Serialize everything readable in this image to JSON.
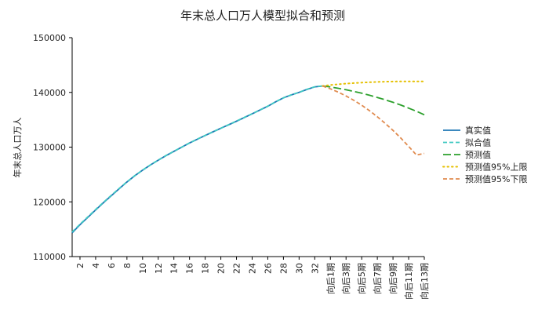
{
  "chart_data": {
    "type": "line",
    "title": "年末总人口万人模型拟合和预测",
    "ylabel": "年末总人口万人",
    "xlabel": "",
    "ylim": [
      110000,
      150000
    ],
    "yticks": [
      110000,
      120000,
      130000,
      140000,
      150000
    ],
    "ytick_labels": [
      "110000",
      "120000",
      "130000",
      "140000",
      "150000"
    ],
    "x_tick_labels": [
      "2",
      "4",
      "6",
      "8",
      "10",
      "12",
      "14",
      "16",
      "18",
      "20",
      "22",
      "24",
      "26",
      "28",
      "30",
      "32",
      "向后1期",
      "向后3期",
      "向后5期",
      "向后7期",
      "向后9期",
      "向后11期",
      "向后13期"
    ],
    "x_tick_positions": [
      2,
      4,
      6,
      8,
      10,
      12,
      14,
      16,
      18,
      20,
      22,
      24,
      26,
      28,
      30,
      32,
      34,
      36,
      38,
      40,
      42,
      44,
      46
    ],
    "xlim": [
      1,
      46
    ],
    "grid": false,
    "legend_position": "right",
    "series": [
      {
        "name": "真实值",
        "color": "#1f77b4",
        "style": "solid",
        "x": [
          1,
          2,
          3,
          4,
          5,
          6,
          7,
          8,
          9,
          10,
          11,
          12,
          13,
          14,
          15,
          16,
          17,
          18,
          19,
          20,
          21,
          22,
          23,
          24,
          25,
          26,
          27,
          28,
          29,
          30,
          31,
          32,
          33
        ],
        "values": [
          114333,
          115823,
          117171,
          118517,
          119850,
          121121,
          122389,
          123626,
          124761,
          125786,
          126743,
          127627,
          128453,
          129227,
          129988,
          130756,
          131448,
          132129,
          132802,
          133450,
          134091,
          134735,
          135404,
          136072,
          136782,
          137462,
          138271,
          139008,
          139538,
          140005,
          140541,
          141008,
          141175
        ]
      },
      {
        "name": "拟合值",
        "color": "#41c9c2",
        "style": "dash",
        "x": [
          1,
          2,
          3,
          4,
          5,
          6,
          7,
          8,
          9,
          10,
          11,
          12,
          13,
          14,
          15,
          16,
          17,
          18,
          19,
          20,
          21,
          22,
          23,
          24,
          25,
          26,
          27,
          28,
          29,
          30,
          31,
          32,
          33
        ],
        "values": [
          114500,
          115900,
          117250,
          118600,
          119900,
          121200,
          122450,
          123650,
          124780,
          125800,
          126760,
          127640,
          128470,
          129240,
          130000,
          130760,
          131460,
          132140,
          132810,
          133460,
          134100,
          134760,
          135430,
          136100,
          136800,
          137480,
          138280,
          139000,
          139550,
          140020,
          140560,
          141020,
          141180
        ]
      },
      {
        "name": "预测值",
        "color": "#2ca02c",
        "style": "longdash",
        "x": [
          33,
          34,
          35,
          36,
          37,
          38,
          39,
          40,
          41,
          42,
          43,
          44,
          45,
          46
        ],
        "values": [
          141175,
          141000,
          140750,
          140480,
          140180,
          139850,
          139480,
          139080,
          138650,
          138180,
          137680,
          137130,
          136550,
          135900
        ]
      },
      {
        "name": "预测值95%上限",
        "color": "#e5c000",
        "style": "dot",
        "x": [
          33,
          34,
          35,
          36,
          37,
          38,
          39,
          40,
          41,
          42,
          43,
          44,
          45,
          46
        ],
        "values": [
          141175,
          141350,
          141480,
          141600,
          141700,
          141780,
          141850,
          141910,
          141960,
          141990,
          142010,
          142020,
          142020,
          142000
        ]
      },
      {
        "name": "预测值95%下限",
        "color": "#e08b4f",
        "style": "dash",
        "x": [
          33,
          34,
          35,
          36,
          37,
          38,
          39,
          40,
          41,
          42,
          43,
          44,
          45,
          46
        ],
        "values": [
          141175,
          140650,
          140050,
          139350,
          138550,
          137650,
          136650,
          135550,
          134350,
          133050,
          131650,
          130150,
          128550,
          128850
        ]
      }
    ]
  }
}
